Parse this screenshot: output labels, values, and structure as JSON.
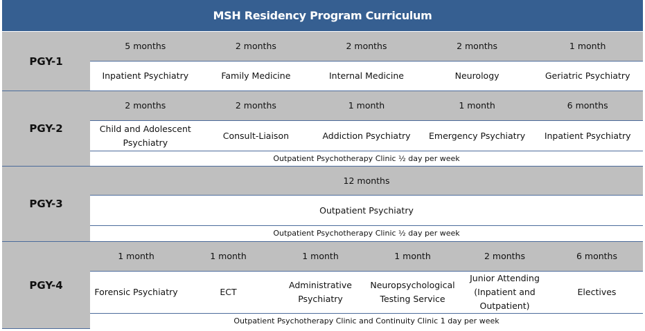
{
  "title": "MSH Residency Program Curriculum",
  "years": [
    {
      "label": "PGY-1",
      "durations": [
        "5 months",
        "2 months",
        "2 months",
        "2 months",
        "1 month"
      ],
      "rotations": [
        "Inpatient Psychiatry",
        "Family Medicine",
        "Internal Medicine",
        "Neurology",
        "Geriatric Psychiatry"
      ]
    },
    {
      "label": "PGY-2",
      "durations": [
        "2 months",
        "2 months",
        "1 month",
        "1 month",
        "6 months"
      ],
      "rotations": [
        "Child and Adolescent Psychiatry",
        "Consult-Liaison",
        "Addiction Psychiatry",
        "Emergency Psychiatry",
        "Inpatient Psychiatry"
      ],
      "clinic": "Outpatient Psychotherapy Clinic ½ day per week"
    },
    {
      "label": "PGY-3",
      "durations": [
        "12 months"
      ],
      "rotations": [
        "Outpatient Psychiatry"
      ],
      "clinic": "Outpatient Psychotherapy Clinic ½ day per week"
    },
    {
      "label": "PGY-4",
      "durations": [
        "1 month",
        "1 month",
        "1 month",
        "1 month",
        "2 months",
        "6 months"
      ],
      "rotations": [
        "Forensic Psychiatry",
        "ECT",
        "Administrative Psychiatry",
        "Neuropsychological Testing Service",
        "Junior Attending (Inpatient and Outpatient)",
        "Electives"
      ],
      "clinic": "Outpatient Psychotherapy Clinic and Continuity Clinic 1 day per week"
    }
  ],
  "colors": {
    "header": "#365F91",
    "gray": "#BFBFBF",
    "border": "#4A6A9A"
  }
}
